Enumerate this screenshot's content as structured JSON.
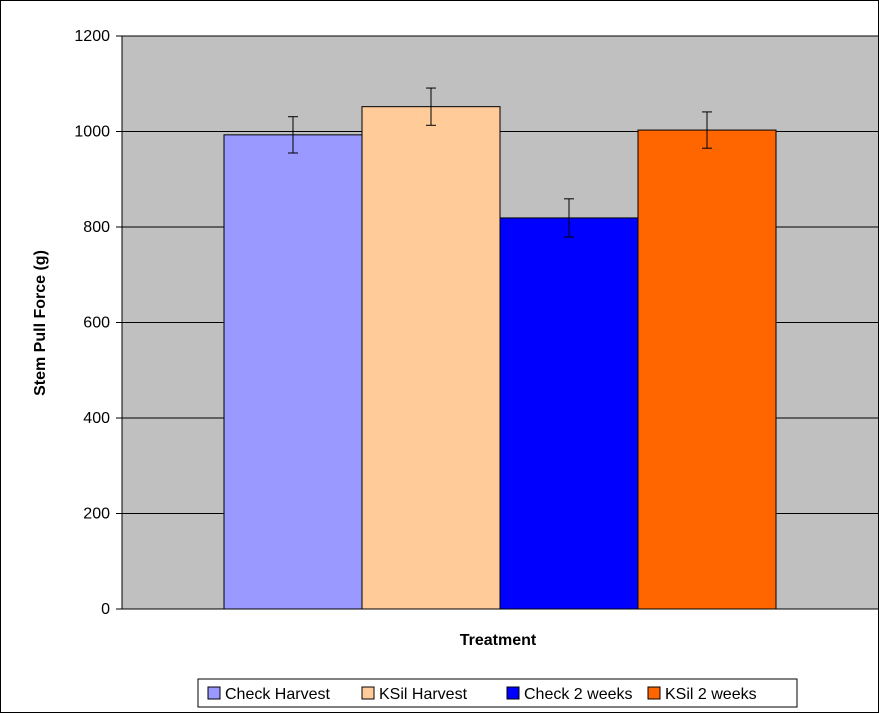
{
  "chart_data": {
    "type": "bar",
    "title": "",
    "xlabel": "Treatment",
    "ylabel": "Stem Pull Force (g)",
    "ylim": [
      0,
      1200
    ],
    "yticks": [
      0,
      200,
      400,
      600,
      800,
      1000,
      1200
    ],
    "grid": true,
    "plot_background": "#c0c0c0",
    "legend_placement": "bottom",
    "series": [
      {
        "name": "Check Harvest",
        "value": 993,
        "error": 38,
        "color": "#9999ff"
      },
      {
        "name": "KSil Harvest",
        "value": 1052,
        "error": 39,
        "color": "#ffcc99"
      },
      {
        "name": "Check 2 weeks",
        "value": 819,
        "error": 40,
        "color": "#0000ff"
      },
      {
        "name": "KSil 2 weeks",
        "value": 1003,
        "error": 38,
        "color": "#ff6600"
      }
    ]
  }
}
